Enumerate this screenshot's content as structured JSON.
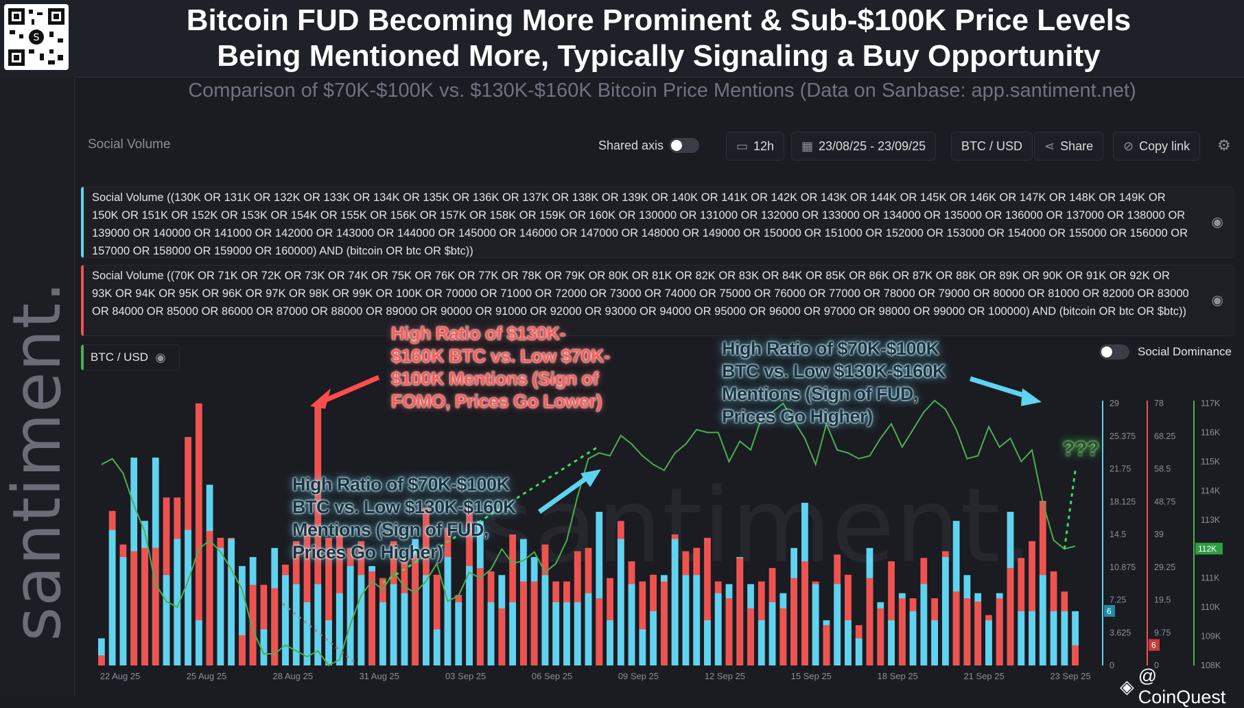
{
  "header": {
    "title_line1": "Bitcoin FUD Becoming More Prominent & Sub-$100K Price Levels",
    "title_line2": "Being Mentioned More, Typically Signaling a Buy Opportunity",
    "subtitle": "Comparison of $70K-$100K vs. $130K-$160K Bitcoin Price Mentions (Data on Sanbase: app.santiment.net)"
  },
  "brand": {
    "vertical_text": "santiment.",
    "watermark": "santiment."
  },
  "toolbar": {
    "metric_label": "Social Volume",
    "shared_axis_label": "Shared axis",
    "interval": "12h",
    "date_range": "23/08/25 - 23/09/25",
    "pair": "BTC / USD",
    "share": "Share",
    "copy_link": "Copy link"
  },
  "queries": {
    "high": "Social Volume ((130K OR 131K OR 132K OR 133K OR 134K OR 135K OR 136K OR 137K OR 138K OR 139K OR 140K OR 141K OR 142K OR 143K OR 144K OR 145K OR 146K OR 147K OR 148K OR 149K OR 150K OR 151K OR 152K OR 153K OR 154K OR 155K OR 156K OR 157K OR 158K OR 159K OR 160K OR 130000 OR 131000 OR 132000 OR 133000 OR 134000 OR 135000 OR 136000 OR 137000 OR 138000 OR 139000 OR 140000 OR 141000 OR 142000 OR 143000 OR 144000 OR 145000 OR 146000 OR 147000 OR 148000 OR 149000 OR 150000 OR 151000 OR 152000 OR 153000 OR 154000 OR 155000 OR 156000 OR 157000 OR 158000 OR 159000 OR 160000) AND (bitcoin OR btc OR $btc))",
    "low": "Social Volume ((70K OR 71K OR 72K OR 73K OR 74K OR 75K OR 76K OR 77K OR 78K OR 79K OR 80K OR 81K OR 82K OR 83K OR 84K OR 85K OR 86K OR 87K OR 88K OR 89K OR 90K OR 91K OR 92K OR 93K OR 94K OR 95K OR 96K OR 97K OR 98K OR 99K OR 100K OR 70000 OR 71000 OR 72000 OR 73000 OR 74000 OR 75000 OR 76000 OR 77000 OR 78000 OR 79000 OR 80000 OR 81000 OR 82000 OR 83000 OR 84000 OR 85000 OR 86000 OR 87000 OR 88000 OR 89000 OR 90000 OR 91000 OR 92000 OR 93000 OR 94000 OR 95000 OR 96000 OR 97000 OR 98000 OR 99000 OR 100000) AND (bitcoin OR btc OR $btc))",
    "btc_tag": "BTC / USD",
    "social_dominance": "Social Dominance"
  },
  "annotations": {
    "red": [
      "High Ratio of $130K-",
      "$160K BTC vs. Low $70K-",
      "$100K Mentions (Sign of",
      "FOMO, Prices Go Lower)"
    ],
    "blue_left": [
      "High Ratio of $70K-$100K",
      "BTC vs. Low $130K-$160K",
      "Mentions (Sign of FUD,",
      "Prices Go Higher)"
    ],
    "blue_right": [
      "High Ratio of $70K-$100K",
      "BTC vs. Low $130K-$160K",
      "Mentions (Sign of FUD,",
      "Prices Go Higher)"
    ],
    "question": "???"
  },
  "credit": "@ CoinQuest",
  "colors": {
    "high_series": "#5fd3f0",
    "low_series": "#ef5350",
    "price_line": "#4caf50",
    "background": "#1a1c22"
  },
  "chart_data": {
    "type": "bar",
    "x_tick_labels": [
      "22 Aug 25",
      "25 Aug 25",
      "28 Aug 25",
      "31 Aug 25",
      "03 Sep 25",
      "06 Sep 25",
      "09 Sep 25",
      "12 Sep 25",
      "15 Sep 25",
      "18 Sep 25",
      "21 Sep 25",
      "23 Sep 25"
    ],
    "y_axis_blue": {
      "ticks": [
        "29",
        "25.375",
        "21.75",
        "18.125",
        "14.5",
        "10.875",
        "7.25",
        "3.625",
        "0"
      ],
      "range": [
        0,
        29
      ],
      "last_value": "6"
    },
    "y_axis_red": {
      "ticks": [
        "78",
        "68.25",
        "58.5",
        "48.75",
        "39",
        "29.25",
        "19.5",
        "9.75",
        "0"
      ],
      "range": [
        0,
        78
      ],
      "last_value": "6"
    },
    "y_axis_price": {
      "ticks": [
        "117K",
        "116K",
        "115K",
        "114K",
        "113K",
        "112K",
        "111K",
        "110K",
        "109K",
        "108K"
      ],
      "range": [
        108000,
        117000
      ],
      "last_value": "112K"
    },
    "series": [
      {
        "name": "Social Volume ($130K-$160K)",
        "axis": "blue",
        "values": [
          3,
          15,
          12,
          23,
          16,
          23,
          10,
          14,
          15,
          5,
          20,
          13,
          14,
          11,
          12,
          4,
          13,
          10,
          9,
          7,
          9,
          5,
          8,
          11,
          10,
          11,
          7,
          9,
          8,
          14,
          10,
          4,
          12,
          7,
          11,
          16,
          7,
          10,
          7,
          14,
          12,
          10,
          7,
          7,
          7,
          8,
          17,
          5,
          14,
          9,
          4,
          6,
          10,
          14,
          10,
          10,
          5,
          8,
          9,
          12,
          9,
          5,
          7,
          8,
          13,
          18,
          9,
          5,
          9,
          5,
          3,
          13,
          7,
          5,
          8,
          6,
          9,
          5,
          12,
          16,
          10,
          8,
          5,
          8,
          17,
          6,
          6,
          10,
          6,
          6,
          6
        ]
      },
      {
        "name": "Social Volume ($70K-$100K)",
        "axis": "red",
        "values": [
          3,
          46,
          36,
          34,
          35,
          35,
          50,
          50,
          68,
          78,
          40,
          38,
          38,
          9,
          24,
          24,
          23,
          30,
          37,
          42,
          78,
          38,
          40,
          35,
          37,
          28,
          26,
          37,
          32,
          33,
          47,
          27,
          41,
          21,
          47,
          29,
          28,
          17,
          39,
          25,
          25,
          36,
          25,
          25,
          34,
          35,
          20,
          26,
          43,
          31,
          25,
          27,
          25,
          39,
          34,
          35,
          38,
          25,
          20,
          32,
          17,
          25,
          29,
          17,
          26,
          31,
          25,
          12,
          33,
          27,
          12,
          26,
          17,
          31,
          20,
          20,
          32,
          20,
          34,
          22,
          20,
          19,
          15,
          20,
          29,
          32,
          37,
          49,
          28,
          22,
          6
        ]
      },
      {
        "name": "BTC / USD",
        "axis": "price",
        "values": [
          114900,
          115100,
          114600,
          113500,
          112600,
          110800,
          110200,
          110000,
          110900,
          112000,
          112300,
          111900,
          111300,
          110600,
          109200,
          108400,
          108400,
          108700,
          108500,
          108300,
          108500,
          108000,
          108200,
          109400,
          110400,
          110900,
          110600,
          111200,
          110700,
          110500,
          110900,
          111500,
          110200,
          110400,
          111200,
          111000,
          111300,
          112000,
          111500,
          111600,
          111900,
          111200,
          111500,
          112300,
          113800,
          115100,
          115300,
          115200,
          115900,
          115600,
          115200,
          114900,
          114700,
          115300,
          115600,
          116100,
          116000,
          116000,
          115000,
          115700,
          115400,
          116500,
          116700,
          117000,
          116400,
          115800,
          114900,
          116300,
          115400,
          115300,
          115100,
          115200,
          115800,
          116300,
          115500,
          116100,
          116700,
          117100,
          116800,
          116100,
          115100,
          115200,
          116200,
          115500,
          115800,
          115000,
          115400,
          113600,
          112300,
          112000,
          112100
        ]
      }
    ],
    "projection": "dashed green arrows drawn along price path",
    "legend": [
      "Social Volume",
      "BTC / USD",
      "Social Dominance"
    ]
  }
}
